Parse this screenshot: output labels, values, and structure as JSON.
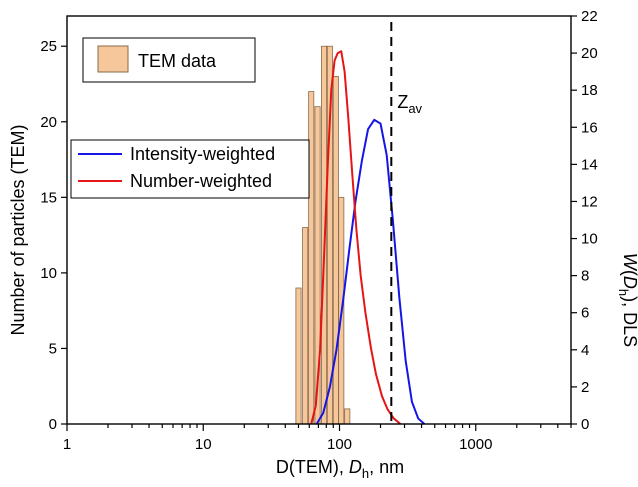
{
  "chart_data": {
    "type": "bar+line",
    "xlabel_parts": [
      "D(TEM), ",
      "D",
      "h",
      ", nm"
    ],
    "x_scale": "log",
    "xlim": [
      1,
      5000
    ],
    "x_tick_labels": [
      "1",
      "10",
      "100",
      "1000"
    ],
    "y_left_label": "Number of particles (TEM)",
    "y_left_lim": [
      0,
      27
    ],
    "y_left_ticks": [
      0,
      5,
      10,
      15,
      20,
      25
    ],
    "y_right_label_parts": [
      "W",
      "(",
      "D",
      "h",
      "), DLS"
    ],
    "y_right_lim": [
      0,
      22
    ],
    "y_right_ticks": [
      0,
      2,
      4,
      6,
      8,
      10,
      12,
      14,
      16,
      18,
      20,
      22
    ],
    "legend": [
      {
        "name": "TEM data",
        "color": "#f6c79b"
      },
      {
        "name": "Intensity-weighted",
        "color": "#1515e6"
      },
      {
        "name": "Number-weighted",
        "color": "#e61515"
      }
    ],
    "bars": {
      "name": "TEM data",
      "fill": "#f6c79b",
      "stroke": "#8a6a4a",
      "x": [
        50,
        56,
        62,
        69,
        77,
        85,
        94,
        103,
        114
      ],
      "values": [
        9,
        13,
        22,
        21,
        25,
        25,
        23,
        15,
        1
      ]
    },
    "series": [
      {
        "name": "Intensity-weighted",
        "axis": "right",
        "color": "#1515e6",
        "x": [
          68,
          76,
          85,
          95,
          106,
          118,
          131,
          146,
          162,
          180,
          200,
          222,
          247,
          275,
          306,
          340,
          378,
          420
        ],
        "y": [
          0,
          0.6,
          2.0,
          4.0,
          6.6,
          9.4,
          12.0,
          14.2,
          15.9,
          16.4,
          16.2,
          14.5,
          10.9,
          6.8,
          3.4,
          1.2,
          0.3,
          0
        ]
      },
      {
        "name": "Number-weighted",
        "axis": "right",
        "color": "#e61515",
        "x": [
          62,
          67,
          72,
          77,
          82,
          87,
          92,
          97,
          103,
          109,
          116,
          124,
          133,
          143,
          155,
          170,
          185,
          205,
          225,
          250,
          280
        ],
        "y": [
          0,
          1.0,
          4.0,
          9.0,
          14.0,
          18.0,
          19.6,
          20.0,
          20.1,
          19.0,
          16.5,
          13.5,
          10.5,
          8.0,
          6.0,
          4.1,
          2.7,
          1.5,
          0.8,
          0.3,
          0
        ]
      }
    ],
    "annotation": {
      "main": "Z",
      "sub": "av",
      "x": 240
    }
  }
}
